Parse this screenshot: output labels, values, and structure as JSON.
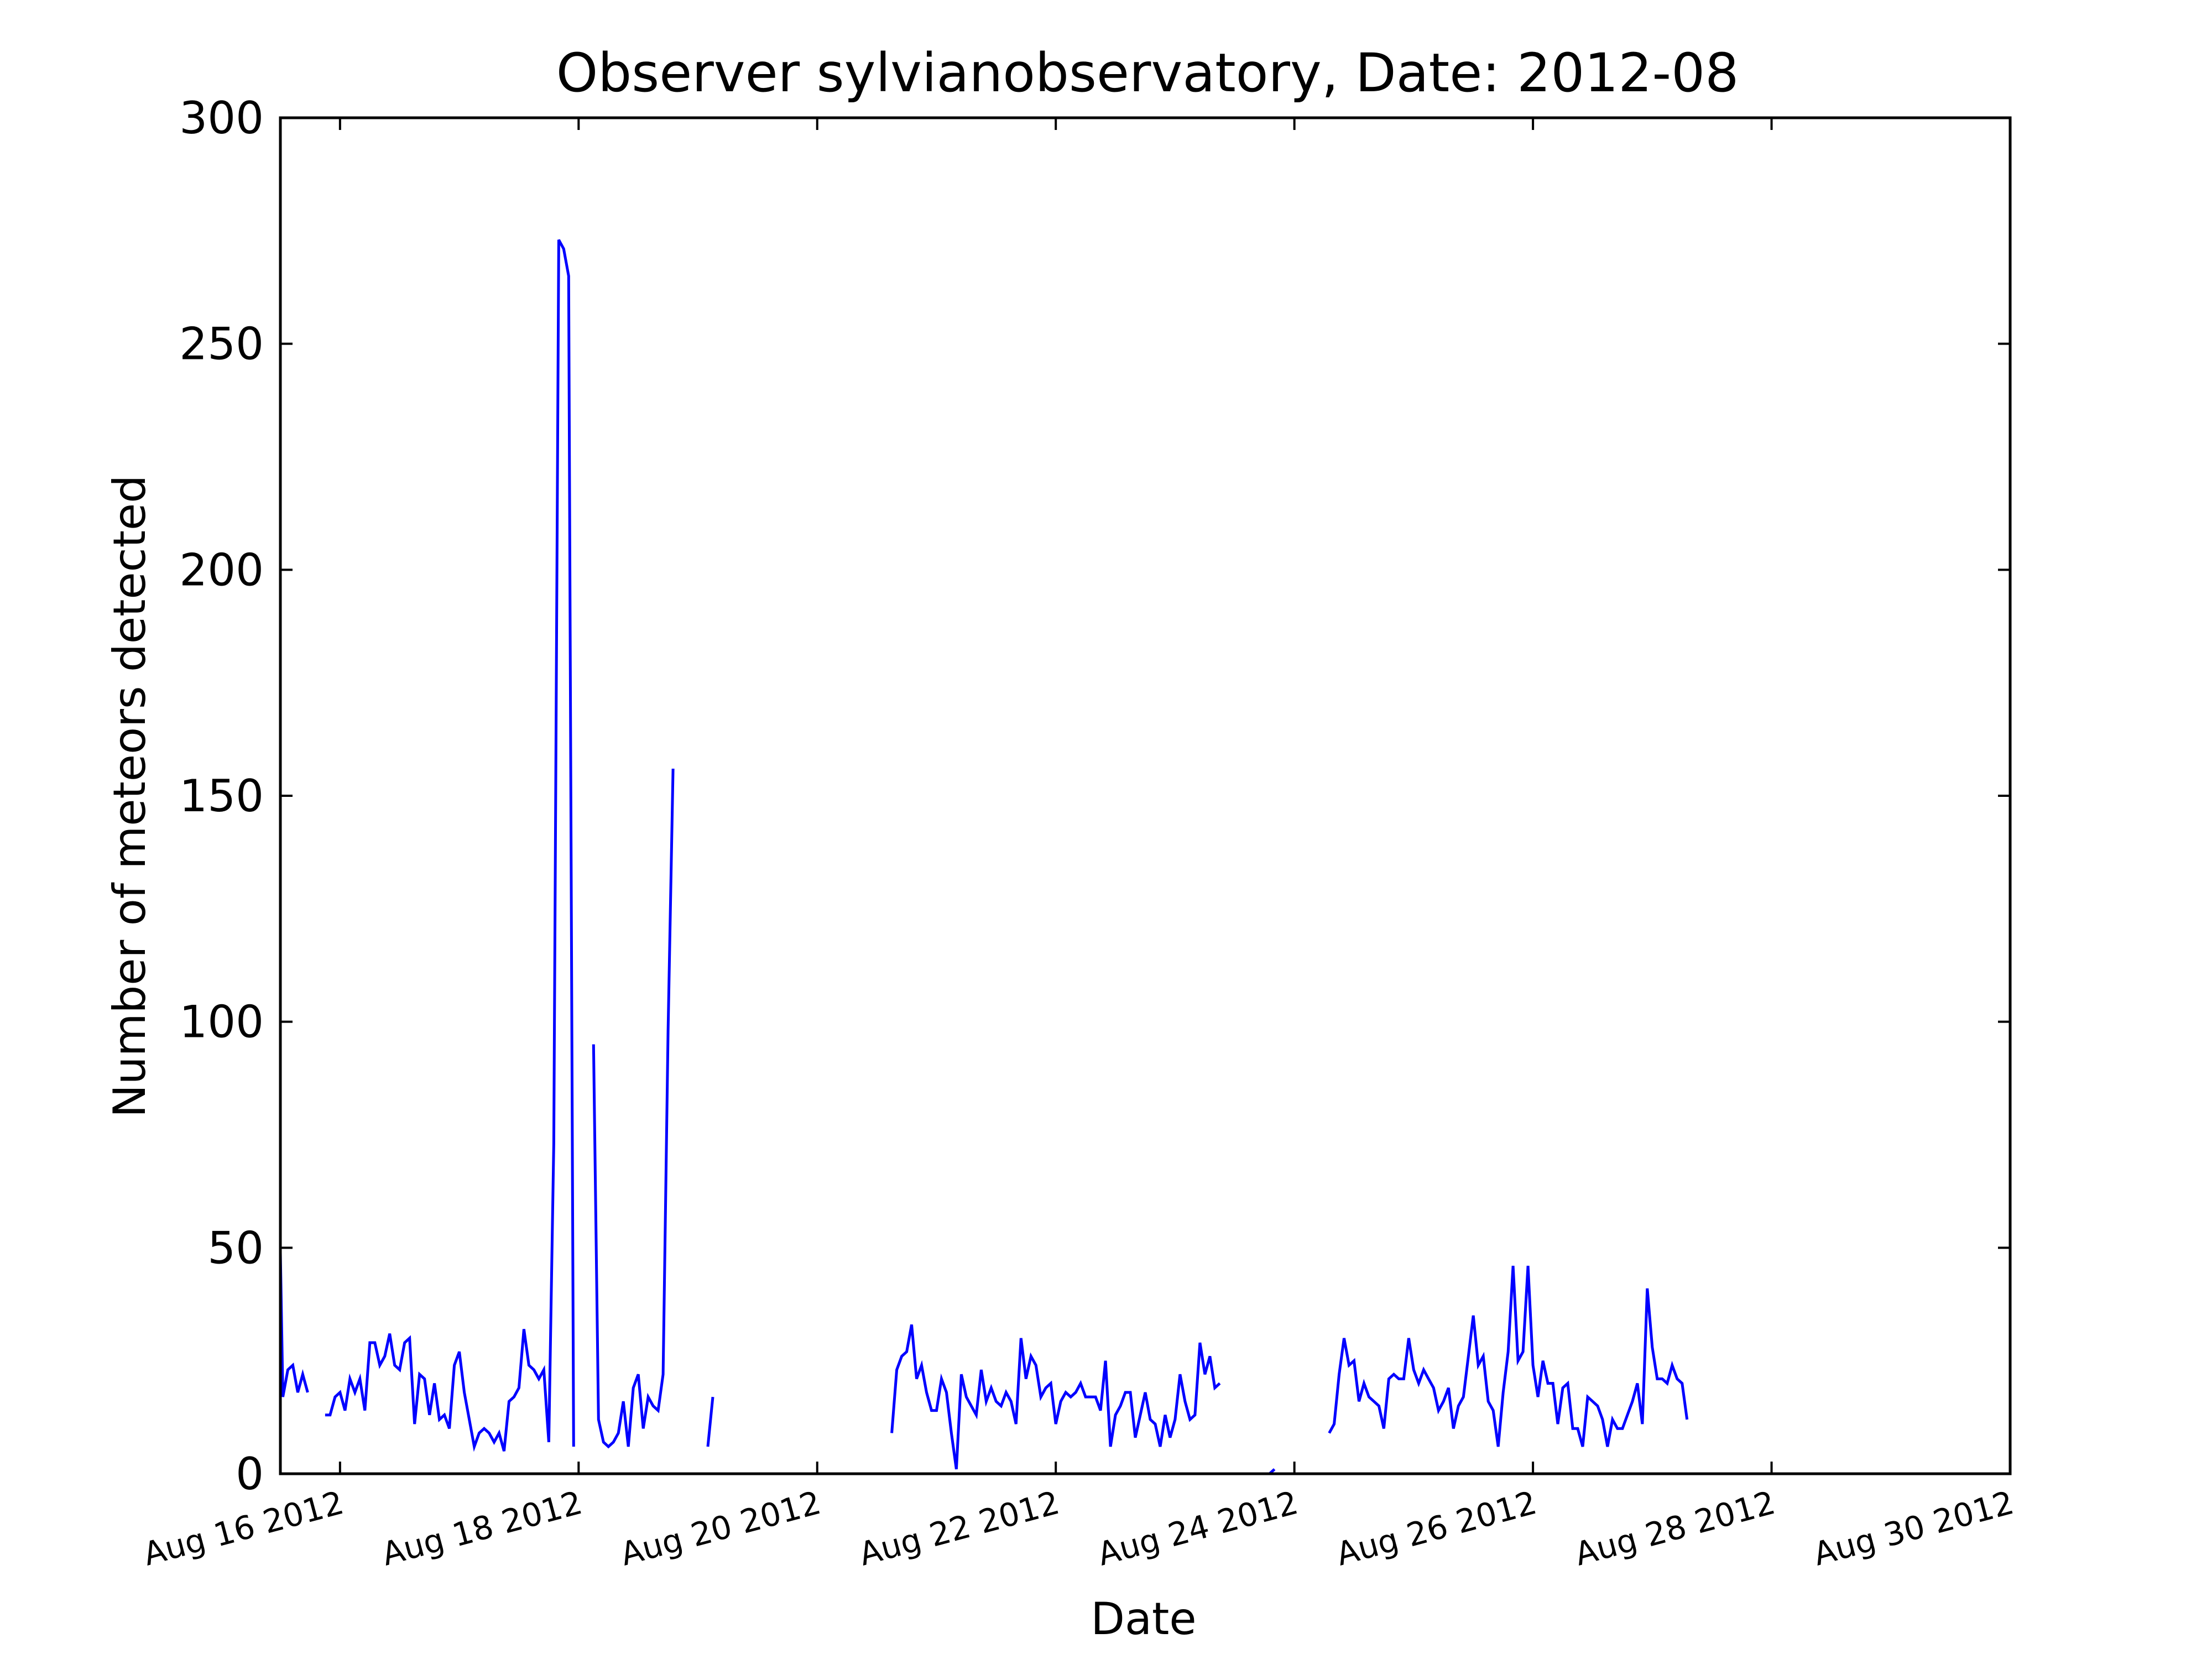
{
  "chart_data": {
    "type": "line",
    "title": "Observer sylvianobservatory, Date: 2012-08",
    "xlabel": "Date",
    "ylabel": "Number of meteors detected",
    "ylim": [
      0,
      300
    ],
    "xlim": [
      "2012-08-15T12:00",
      "2012-08-30T00:00"
    ],
    "yticks": [
      0,
      50,
      100,
      150,
      200,
      250,
      300
    ],
    "xticks": [
      {
        "date": "2012-08-16T00:00",
        "label": "Aug 16 2012"
      },
      {
        "date": "2012-08-18T00:00",
        "label": "Aug 18 2012"
      },
      {
        "date": "2012-08-20T00:00",
        "label": "Aug 20 2012"
      },
      {
        "date": "2012-08-22T00:00",
        "label": "Aug 22 2012"
      },
      {
        "date": "2012-08-24T00:00",
        "label": "Aug 24 2012"
      },
      {
        "date": "2012-08-26T00:00",
        "label": "Aug 26 2012"
      },
      {
        "date": "2012-08-28T00:00",
        "label": "Aug 28 2012"
      },
      {
        "date": "2012-08-30T00:00",
        "label": "Aug 30 2012"
      }
    ],
    "grid": false,
    "legend": "none",
    "line_color": "#0000ff",
    "series": [
      {
        "values": [
          [
            "2012-08-15T12:00",
            49
          ],
          [
            "2012-08-15T12:30",
            17
          ],
          [
            "2012-08-15T13:30",
            23
          ],
          [
            "2012-08-15T14:30",
            24
          ],
          [
            "2012-08-15T15:30",
            18
          ],
          [
            "2012-08-15T16:30",
            22
          ],
          [
            "2012-08-15T17:30",
            18
          ]
        ]
      },
      {
        "values": [
          [
            "2012-08-15T21:00",
            13
          ],
          [
            "2012-08-15T22:00",
            13
          ],
          [
            "2012-08-15T23:00",
            17
          ],
          [
            "2012-08-16T00:00",
            18
          ],
          [
            "2012-08-16T01:00",
            14
          ],
          [
            "2012-08-16T02:00",
            21
          ],
          [
            "2012-08-16T03:00",
            18
          ],
          [
            "2012-08-16T04:00",
            21
          ],
          [
            "2012-08-16T05:00",
            14
          ],
          [
            "2012-08-16T06:00",
            29
          ],
          [
            "2012-08-16T07:00",
            29
          ],
          [
            "2012-08-16T08:00",
            24
          ],
          [
            "2012-08-16T09:00",
            26
          ],
          [
            "2012-08-16T10:00",
            31
          ],
          [
            "2012-08-16T11:00",
            24
          ],
          [
            "2012-08-16T12:00",
            23
          ],
          [
            "2012-08-16T13:00",
            29
          ],
          [
            "2012-08-16T14:00",
            30
          ],
          [
            "2012-08-16T15:00",
            11
          ],
          [
            "2012-08-16T16:00",
            22
          ],
          [
            "2012-08-16T17:00",
            21
          ],
          [
            "2012-08-16T18:00",
            13
          ],
          [
            "2012-08-16T19:00",
            20
          ],
          [
            "2012-08-16T20:00",
            12
          ],
          [
            "2012-08-16T21:00",
            13
          ],
          [
            "2012-08-16T22:00",
            10
          ],
          [
            "2012-08-16T23:00",
            24
          ],
          [
            "2012-08-17T00:00",
            27
          ],
          [
            "2012-08-17T01:00",
            18
          ],
          [
            "2012-08-17T02:00",
            12
          ],
          [
            "2012-08-17T03:00",
            6
          ],
          [
            "2012-08-17T04:00",
            9
          ],
          [
            "2012-08-17T05:00",
            10
          ],
          [
            "2012-08-17T06:00",
            9
          ],
          [
            "2012-08-17T07:00",
            7
          ],
          [
            "2012-08-17T08:00",
            9
          ],
          [
            "2012-08-17T09:00",
            5
          ],
          [
            "2012-08-17T10:00",
            16
          ],
          [
            "2012-08-17T11:00",
            17
          ],
          [
            "2012-08-17T12:00",
            19
          ],
          [
            "2012-08-17T13:00",
            32
          ],
          [
            "2012-08-17T14:00",
            24
          ],
          [
            "2012-08-17T15:00",
            23
          ],
          [
            "2012-08-17T16:00",
            21
          ],
          [
            "2012-08-17T17:00",
            23
          ],
          [
            "2012-08-17T18:00",
            7
          ],
          [
            "2012-08-17T19:00",
            73
          ],
          [
            "2012-08-17T20:00",
            273
          ],
          [
            "2012-08-17T21:00",
            271
          ],
          [
            "2012-08-17T22:00",
            265
          ],
          [
            "2012-08-17T23:00",
            6
          ]
        ]
      },
      {
        "values": [
          [
            "2012-08-18T03:00",
            95
          ],
          [
            "2012-08-18T04:00",
            12
          ],
          [
            "2012-08-18T05:00",
            7
          ],
          [
            "2012-08-18T06:00",
            6
          ],
          [
            "2012-08-18T07:00",
            7
          ],
          [
            "2012-08-18T08:00",
            9
          ],
          [
            "2012-08-18T09:00",
            16
          ],
          [
            "2012-08-18T10:00",
            6
          ],
          [
            "2012-08-18T11:00",
            19
          ],
          [
            "2012-08-18T12:00",
            22
          ],
          [
            "2012-08-18T13:00",
            10
          ],
          [
            "2012-08-18T14:00",
            17
          ],
          [
            "2012-08-18T15:00",
            15
          ],
          [
            "2012-08-18T16:00",
            14
          ],
          [
            "2012-08-18T17:00",
            22
          ],
          [
            "2012-08-18T18:00",
            98
          ],
          [
            "2012-08-18T19:00",
            156
          ]
        ]
      },
      {
        "values": [
          [
            "2012-08-19T02:00",
            6
          ],
          [
            "2012-08-19T03:00",
            17
          ]
        ]
      },
      {
        "values": [
          [
            "2012-08-20T15:00",
            9
          ],
          [
            "2012-08-20T16:00",
            23
          ],
          [
            "2012-08-20T17:00",
            26
          ],
          [
            "2012-08-20T18:00",
            27
          ],
          [
            "2012-08-20T19:00",
            33
          ],
          [
            "2012-08-20T20:00",
            21
          ],
          [
            "2012-08-20T21:00",
            24
          ],
          [
            "2012-08-20T22:00",
            18
          ],
          [
            "2012-08-20T23:00",
            14
          ],
          [
            "2012-08-21T00:00",
            14
          ],
          [
            "2012-08-21T01:00",
            21
          ],
          [
            "2012-08-21T02:00",
            18
          ],
          [
            "2012-08-21T03:00",
            9
          ],
          [
            "2012-08-21T04:00",
            1
          ],
          [
            "2012-08-21T05:00",
            22
          ],
          [
            "2012-08-21T06:00",
            17
          ],
          [
            "2012-08-21T07:00",
            15
          ],
          [
            "2012-08-21T08:00",
            13
          ],
          [
            "2012-08-21T09:00",
            23
          ],
          [
            "2012-08-21T10:00",
            16
          ],
          [
            "2012-08-21T11:00",
            19
          ],
          [
            "2012-08-21T12:00",
            16
          ],
          [
            "2012-08-21T13:00",
            15
          ],
          [
            "2012-08-21T14:00",
            18
          ],
          [
            "2012-08-21T15:00",
            16
          ],
          [
            "2012-08-21T16:00",
            11
          ],
          [
            "2012-08-21T17:00",
            30
          ],
          [
            "2012-08-21T18:00",
            21
          ],
          [
            "2012-08-21T19:00",
            26
          ],
          [
            "2012-08-21T20:00",
            24
          ],
          [
            "2012-08-21T21:00",
            17
          ],
          [
            "2012-08-21T22:00",
            19
          ],
          [
            "2012-08-21T23:00",
            20
          ],
          [
            "2012-08-22T00:00",
            11
          ],
          [
            "2012-08-22T01:00",
            16
          ],
          [
            "2012-08-22T02:00",
            18
          ],
          [
            "2012-08-22T03:00",
            17
          ],
          [
            "2012-08-22T04:00",
            18
          ],
          [
            "2012-08-22T05:00",
            20
          ],
          [
            "2012-08-22T06:00",
            17
          ],
          [
            "2012-08-22T07:00",
            17
          ],
          [
            "2012-08-22T08:00",
            17
          ],
          [
            "2012-08-22T09:00",
            14
          ],
          [
            "2012-08-22T10:00",
            25
          ],
          [
            "2012-08-22T11:00",
            6
          ],
          [
            "2012-08-22T12:00",
            13
          ],
          [
            "2012-08-22T13:00",
            15
          ],
          [
            "2012-08-22T14:00",
            18
          ],
          [
            "2012-08-22T15:00",
            18
          ],
          [
            "2012-08-22T16:00",
            8
          ],
          [
            "2012-08-22T17:00",
            13
          ],
          [
            "2012-08-22T18:00",
            18
          ],
          [
            "2012-08-22T19:00",
            12
          ],
          [
            "2012-08-22T20:00",
            11
          ],
          [
            "2012-08-22T21:00",
            6
          ],
          [
            "2012-08-22T22:00",
            13
          ],
          [
            "2012-08-22T23:00",
            8
          ],
          [
            "2012-08-23T00:00",
            12
          ],
          [
            "2012-08-23T01:00",
            22
          ],
          [
            "2012-08-23T02:00",
            16
          ],
          [
            "2012-08-23T03:00",
            12
          ],
          [
            "2012-08-23T04:00",
            13
          ],
          [
            "2012-08-23T05:00",
            29
          ],
          [
            "2012-08-23T06:00",
            22
          ],
          [
            "2012-08-23T07:00",
            26
          ],
          [
            "2012-08-23T08:00",
            19
          ],
          [
            "2012-08-23T09:00",
            20
          ]
        ]
      },
      {
        "values": [
          [
            "2012-08-23T19:00",
            0
          ],
          [
            "2012-08-23T20:00",
            1
          ]
        ]
      },
      {
        "values": [
          [
            "2012-08-24T07:00",
            9
          ],
          [
            "2012-08-24T08:00",
            11
          ],
          [
            "2012-08-24T09:00",
            22
          ],
          [
            "2012-08-24T10:00",
            30
          ],
          [
            "2012-08-24T11:00",
            24
          ],
          [
            "2012-08-24T12:00",
            25
          ],
          [
            "2012-08-24T13:00",
            16
          ],
          [
            "2012-08-24T14:00",
            20
          ],
          [
            "2012-08-24T15:00",
            17
          ],
          [
            "2012-08-24T16:00",
            16
          ],
          [
            "2012-08-24T17:00",
            15
          ],
          [
            "2012-08-24T18:00",
            10
          ],
          [
            "2012-08-24T19:00",
            21
          ],
          [
            "2012-08-24T20:00",
            22
          ],
          [
            "2012-08-24T21:00",
            21
          ],
          [
            "2012-08-24T22:00",
            21
          ],
          [
            "2012-08-24T23:00",
            30
          ],
          [
            "2012-08-25T00:00",
            23
          ],
          [
            "2012-08-25T01:00",
            20
          ],
          [
            "2012-08-25T02:00",
            23
          ],
          [
            "2012-08-25T03:00",
            21
          ],
          [
            "2012-08-25T04:00",
            19
          ],
          [
            "2012-08-25T05:00",
            14
          ],
          [
            "2012-08-25T06:00",
            16
          ],
          [
            "2012-08-25T07:00",
            19
          ],
          [
            "2012-08-25T08:00",
            10
          ],
          [
            "2012-08-25T09:00",
            15
          ],
          [
            "2012-08-25T10:00",
            17
          ],
          [
            "2012-08-25T11:00",
            26
          ],
          [
            "2012-08-25T12:00",
            35
          ],
          [
            "2012-08-25T13:00",
            24
          ],
          [
            "2012-08-25T14:00",
            26
          ],
          [
            "2012-08-25T15:00",
            16
          ],
          [
            "2012-08-25T16:00",
            14
          ],
          [
            "2012-08-25T17:00",
            6
          ],
          [
            "2012-08-25T18:00",
            18
          ],
          [
            "2012-08-25T19:00",
            27
          ],
          [
            "2012-08-25T20:00",
            46
          ],
          [
            "2012-08-25T21:00",
            25
          ],
          [
            "2012-08-25T22:00",
            27
          ],
          [
            "2012-08-25T23:00",
            46
          ],
          [
            "2012-08-26T00:00",
            24
          ],
          [
            "2012-08-26T01:00",
            17
          ],
          [
            "2012-08-26T02:00",
            25
          ],
          [
            "2012-08-26T03:00",
            20
          ],
          [
            "2012-08-26T04:00",
            20
          ],
          [
            "2012-08-26T05:00",
            11
          ],
          [
            "2012-08-26T06:00",
            19
          ],
          [
            "2012-08-26T07:00",
            20
          ],
          [
            "2012-08-26T08:00",
            10
          ],
          [
            "2012-08-26T09:00",
            10
          ],
          [
            "2012-08-26T10:00",
            6
          ],
          [
            "2012-08-26T11:00",
            17
          ],
          [
            "2012-08-26T12:00",
            16
          ],
          [
            "2012-08-26T13:00",
            15
          ],
          [
            "2012-08-26T14:00",
            12
          ],
          [
            "2012-08-26T15:00",
            6
          ],
          [
            "2012-08-26T16:00",
            12
          ],
          [
            "2012-08-26T17:00",
            10
          ],
          [
            "2012-08-26T18:00",
            10
          ],
          [
            "2012-08-26T19:00",
            13
          ],
          [
            "2012-08-26T20:00",
            16
          ],
          [
            "2012-08-26T21:00",
            20
          ],
          [
            "2012-08-26T22:00",
            11
          ],
          [
            "2012-08-26T23:00",
            41
          ],
          [
            "2012-08-27T00:00",
            28
          ],
          [
            "2012-08-27T01:00",
            21
          ],
          [
            "2012-08-27T02:00",
            21
          ],
          [
            "2012-08-27T03:00",
            20
          ],
          [
            "2012-08-27T04:00",
            24
          ],
          [
            "2012-08-27T05:00",
            21
          ],
          [
            "2012-08-27T06:00",
            20
          ],
          [
            "2012-08-27T07:00",
            12
          ]
        ]
      }
    ]
  }
}
